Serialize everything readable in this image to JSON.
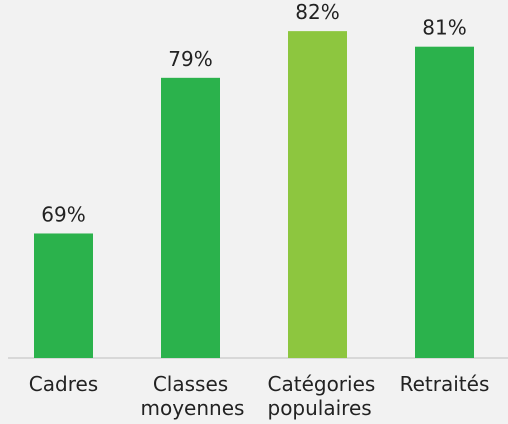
{
  "chart_data": {
    "type": "bar",
    "categories": [
      "Cadres",
      "Classes moyennes",
      "Catégories populaires",
      "Retraités"
    ],
    "values": [
      69,
      79,
      82,
      81
    ],
    "value_labels": [
      "69%",
      "79%",
      "82%",
      "81%"
    ],
    "colors": [
      "#2bb24c",
      "#2bb24c",
      "#8dc63f",
      "#2bb24c"
    ],
    "ylim": [
      61,
      84
    ]
  }
}
